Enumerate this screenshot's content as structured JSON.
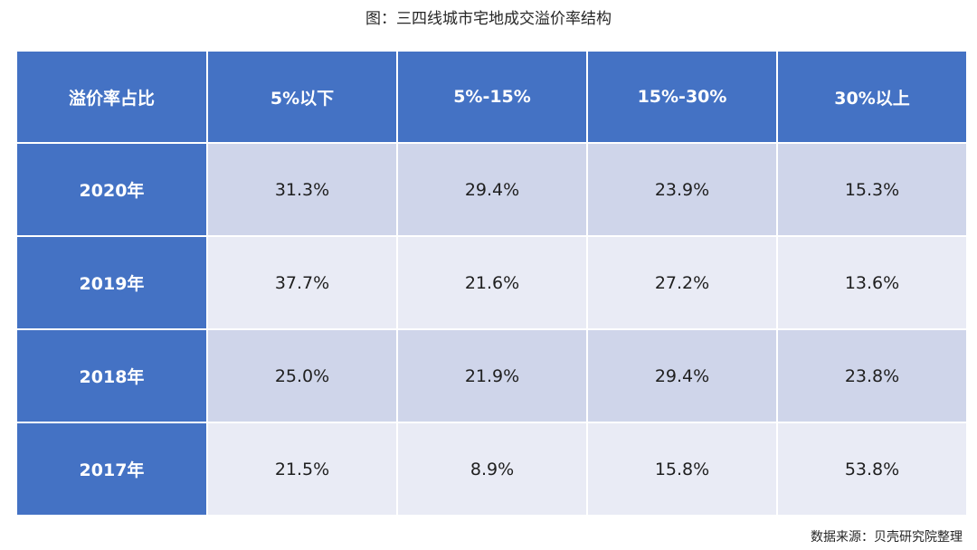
{
  "title": "图：三四线城市宅地成交溢价率结构",
  "source": "数据来源：贝壳研究院整理",
  "colors": {
    "header_bg": "#4472c4",
    "row_odd_bg": "#cfd5ea",
    "row_even_bg": "#e9ebf5"
  },
  "chart_data": {
    "type": "table",
    "title": "图：三四线城市宅地成交溢价率结构",
    "columns": [
      "溢价率占比",
      "5%以下",
      "5%-15%",
      "15%-30%",
      "30%以上"
    ],
    "rows": [
      {
        "label": "2020年",
        "values": [
          "31.3%",
          "29.4%",
          "23.9%",
          "15.3%"
        ]
      },
      {
        "label": "2019年",
        "values": [
          "37.7%",
          "21.6%",
          "27.2%",
          "13.6%"
        ]
      },
      {
        "label": "2018年",
        "values": [
          "25.0%",
          "21.9%",
          "29.4%",
          "23.8%"
        ]
      },
      {
        "label": "2017年",
        "values": [
          "21.5%",
          "8.9%",
          "15.8%",
          "53.8%"
        ]
      }
    ]
  }
}
